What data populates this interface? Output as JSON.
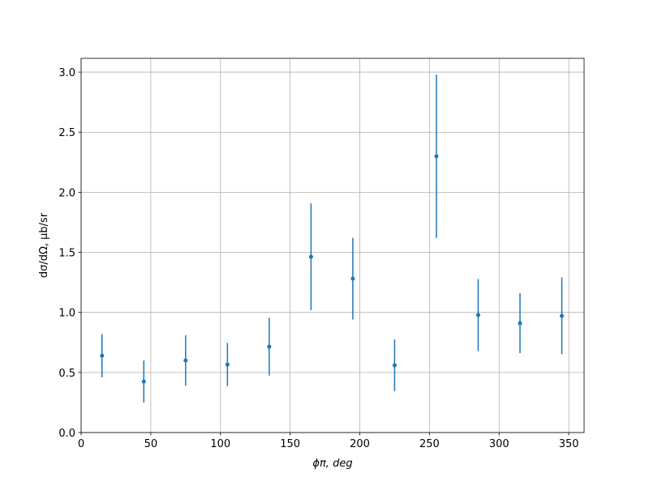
{
  "chart_data": {
    "type": "errorbar",
    "x_label": "ϕπ, deg",
    "y_label": "dσ/dΩ, μb/sr",
    "x": [
      15,
      45,
      75,
      105,
      135,
      165,
      195,
      225,
      255,
      285,
      315,
      345
    ],
    "series": [
      {
        "color": "#1f77b4",
        "values": [
          0.64,
          0.425,
          0.6,
          0.566,
          0.715,
          1.463,
          1.281,
          0.56,
          2.299,
          0.978,
          0.91,
          0.971
        ],
        "errors": [
          0.18,
          0.175,
          0.21,
          0.18,
          0.24,
          0.445,
          0.34,
          0.215,
          0.68,
          0.3,
          0.25,
          0.32
        ]
      }
    ],
    "xlim": [
      0,
      361
    ],
    "ylim": [
      0,
      3.115
    ],
    "xticks": [
      0,
      50,
      100,
      150,
      200,
      250,
      300,
      350
    ],
    "yticks": [
      {
        "value": 0,
        "label": "0.0"
      },
      0.5,
      {
        "value": 1,
        "label": "1.0"
      },
      1.5,
      {
        "value": 2,
        "label": "2.0"
      },
      2.5,
      {
        "value": 3,
        "label": "3.0"
      }
    ],
    "grid": true
  }
}
